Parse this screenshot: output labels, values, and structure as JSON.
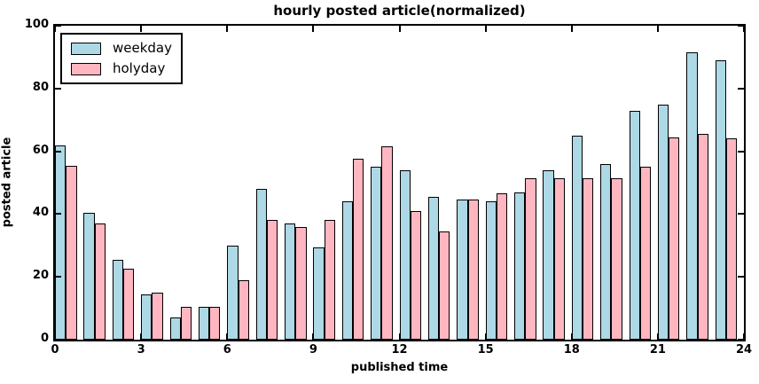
{
  "chart_data": {
    "type": "bar",
    "title": "hourly posted article(normalized)",
    "xlabel": "published time",
    "ylabel": "posted article",
    "categories": [
      0,
      1,
      2,
      3,
      4,
      5,
      6,
      7,
      8,
      9,
      10,
      11,
      12,
      13,
      14,
      15,
      16,
      17,
      18,
      19,
      20,
      21,
      22,
      23
    ],
    "series": [
      {
        "name": "weekday",
        "color": "#ADD8E6",
        "values": [
          62,
          40.5,
          25.5,
          14.5,
          7,
          10.5,
          30,
          48,
          37,
          29.5,
          44,
          55,
          54,
          45.5,
          44.5,
          44,
          47,
          54,
          65,
          56,
          73,
          75,
          91.5,
          89
        ]
      },
      {
        "name": "holyday",
        "color": "#FFB6C1",
        "values": [
          55.5,
          37,
          22.5,
          15,
          10.5,
          10.5,
          19,
          38,
          36,
          38,
          57.5,
          61.5,
          41,
          34.5,
          44.5,
          46.5,
          51.5,
          51.5,
          51.5,
          51.5,
          55,
          64.5,
          65.5,
          64
        ]
      }
    ],
    "xlim": [
      0,
      24
    ],
    "ylim": [
      0,
      100
    ],
    "xticks": [
      0,
      3,
      6,
      9,
      12,
      15,
      18,
      21,
      24
    ],
    "yticks": [
      0,
      20,
      40,
      60,
      80,
      100
    ],
    "grid": false,
    "legend_position": "upper left",
    "bar_width": 0.38,
    "edge_color": "#000000",
    "background_color": "#ffffff",
    "text_color": "#000000"
  }
}
